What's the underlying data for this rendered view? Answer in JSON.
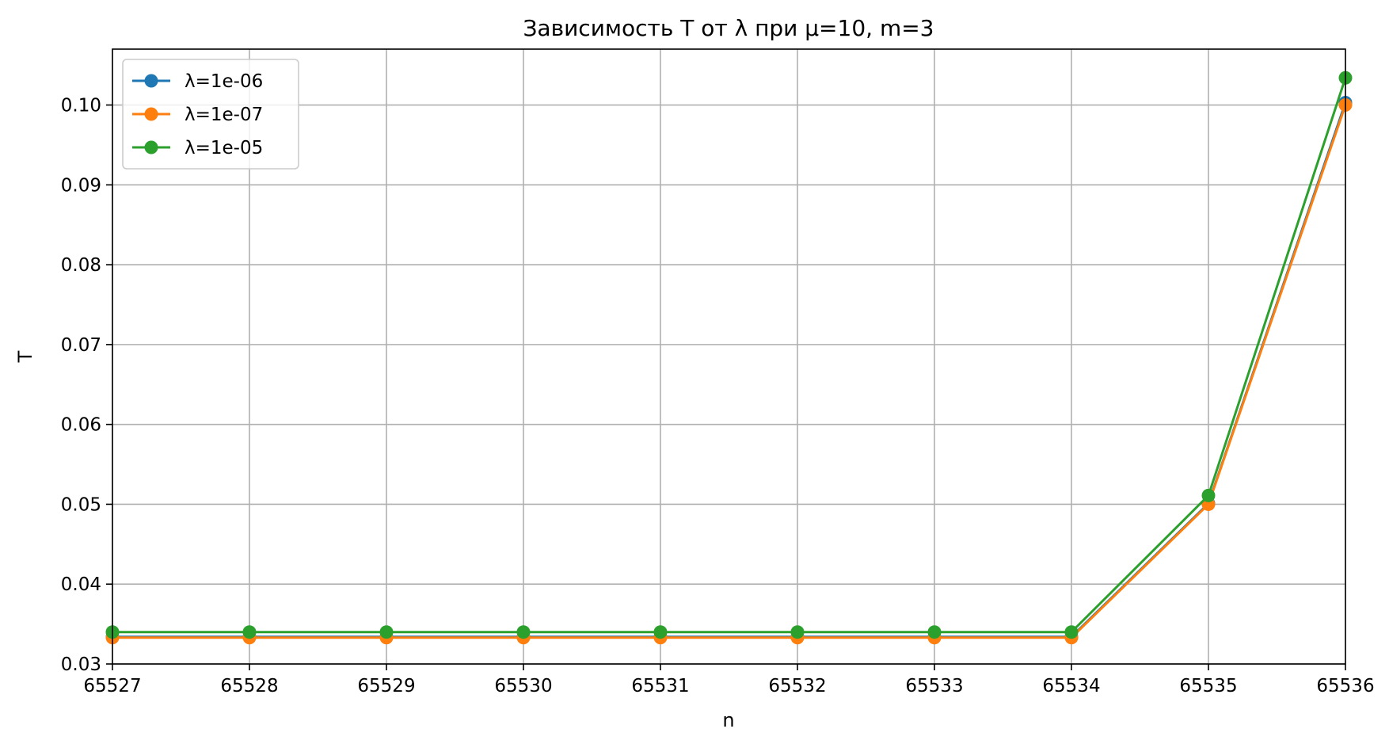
{
  "chart_data": {
    "type": "line",
    "title": "Зависимость T от λ при μ=10, m=3",
    "xlabel": "n",
    "ylabel": "T",
    "xlim": [
      65527,
      65536
    ],
    "ylim": [
      0.03,
      0.107
    ],
    "x_ticks": [
      65527,
      65528,
      65529,
      65530,
      65531,
      65532,
      65533,
      65534,
      65535,
      65536
    ],
    "y_ticks": [
      "0.03",
      "0.04",
      "0.05",
      "0.06",
      "0.07",
      "0.08",
      "0.09",
      "0.10"
    ],
    "grid": true,
    "legend_position": "top-left",
    "x": [
      65527,
      65528,
      65529,
      65530,
      65531,
      65532,
      65533,
      65534,
      65535,
      65536
    ],
    "series": [
      {
        "name": "λ=1e-06",
        "color": "#1f77b4",
        "values": [
          0.0334,
          0.0334,
          0.0334,
          0.0334,
          0.0334,
          0.0334,
          0.0334,
          0.0334,
          0.0501,
          0.1003
        ]
      },
      {
        "name": "λ=1e-07",
        "color": "#ff7f0e",
        "values": [
          0.0333,
          0.0333,
          0.0333,
          0.0333,
          0.0333,
          0.0333,
          0.0333,
          0.0333,
          0.05,
          0.1
        ]
      },
      {
        "name": "λ=1e-05",
        "color": "#2ca02c",
        "values": [
          0.034,
          0.034,
          0.034,
          0.034,
          0.034,
          0.034,
          0.034,
          0.034,
          0.0511,
          0.1034
        ]
      }
    ]
  }
}
